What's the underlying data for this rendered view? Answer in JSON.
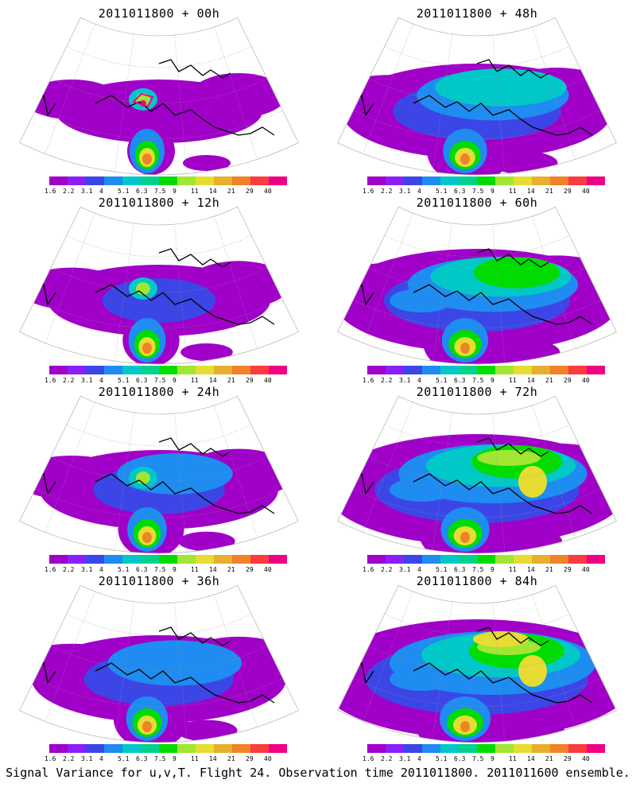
{
  "panels": [
    {
      "title": "2011011800 + 00h",
      "level": 0
    },
    {
      "title": "2011011800 + 48h",
      "level": 4
    },
    {
      "title": "2011011800 + 12h",
      "level": 1
    },
    {
      "title": "2011011800 + 60h",
      "level": 5
    },
    {
      "title": "2011011800 + 24h",
      "level": 2
    },
    {
      "title": "2011011800 + 72h",
      "level": 6
    },
    {
      "title": "2011011800 + 36h",
      "level": 3
    },
    {
      "title": "2011011800 + 84h",
      "level": 7
    }
  ],
  "colorbar": {
    "labels": [
      "1.6",
      "2.2",
      "3.1",
      "4",
      "5.1",
      "6.3",
      "7.5",
      "9",
      "11",
      "14",
      "21",
      "29",
      "40"
    ],
    "colors": [
      "#a000c8",
      "#8c1efa",
      "#3c46e6",
      "#1e8cf0",
      "#00c8c8",
      "#00d28c",
      "#00dc00",
      "#a0e632",
      "#e6dc32",
      "#e6af2d",
      "#f08228",
      "#fa3c3c",
      "#f00082"
    ]
  },
  "footer": "Signal Variance for u,v,T. Flight 24. Observation time 2011011800. 2011011600 ensemble."
}
